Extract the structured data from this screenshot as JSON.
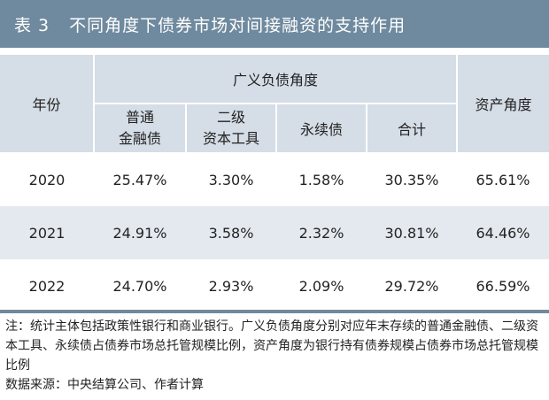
{
  "title": {
    "number": "表 3",
    "text": "不同角度下债券市场对间接融资的支持作用"
  },
  "table": {
    "year_header": "年份",
    "group_header": "广义负债角度",
    "asset_header": "资产角度",
    "sub_headers": [
      [
        "普通",
        "金融债"
      ],
      [
        "二级",
        "资本工具"
      ],
      [
        "永续债"
      ],
      [
        "合计"
      ]
    ],
    "rows": [
      {
        "year": "2020",
        "ordinary": "25.47%",
        "tier2": "3.30%",
        "perpetual": "1.58%",
        "total": "30.35%",
        "asset": "65.61%"
      },
      {
        "year": "2021",
        "ordinary": "24.91%",
        "tier2": "3.58%",
        "perpetual": "2.32%",
        "total": "30.81%",
        "asset": "64.46%"
      },
      {
        "year": "2022",
        "ordinary": "24.70%",
        "tier2": "2.93%",
        "perpetual": "2.09%",
        "total": "29.72%",
        "asset": "66.59%"
      }
    ]
  },
  "colors": {
    "title_bg": "#6f8a9f",
    "header_bg": "#d5dde6",
    "alt_row_bg": "#e4e9ef"
  },
  "notes": {
    "note": "注：统计主体包括政策性银行和商业银行。广义负债角度分别对应年末存续的普通金融债、二级资本工具、永续债占债券市场总托管规模比例，资产角度为银行持有债券规模占债券市场总托管规模比例",
    "source": "数据来源：中央结算公司、作者计算"
  }
}
